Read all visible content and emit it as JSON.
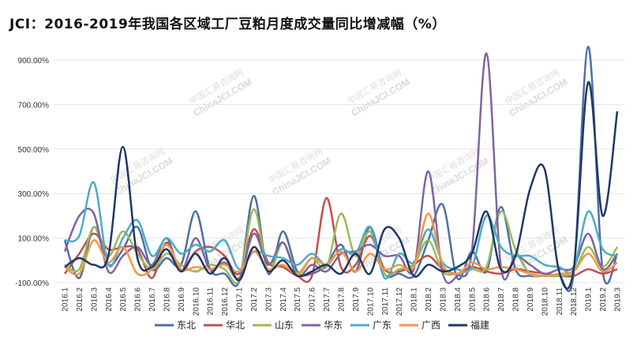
{
  "chart_data": {
    "type": "line",
    "title": "JCI：2016-2019年我国各区域工厂豆粕月度成交量同比增减幅（%）",
    "xlabel": "",
    "ylabel": "",
    "ylim": [
      -100,
      950
    ],
    "yticks": [
      -100,
      100,
      300,
      500,
      700,
      900
    ],
    "ytick_labels": [
      "-100.00%",
      "100.00%",
      "300.00%",
      "500.00%",
      "700.00%",
      "900.00%"
    ],
    "x": [
      "2016.1",
      "2016.2",
      "2016.3",
      "2016.4",
      "2016.5",
      "2016.6",
      "2016.7",
      "2016.8",
      "2016.9",
      "2016.10",
      "2016.11",
      "2016.12",
      "2017.1",
      "2017.2",
      "2017.3",
      "2017.4",
      "2017.5",
      "2017.6",
      "2017.7",
      "2017.8",
      "2017.9",
      "2017.10",
      "2017.11",
      "2017.12",
      "2018.1",
      "2018.2",
      "2018.3",
      "2018.4",
      "2018.5",
      "2018.6",
      "2018.7",
      "2018.8",
      "2018.9",
      "2018.10",
      "2018.11",
      "2018.12",
      "2019.1",
      "2019.2",
      "2019.3"
    ],
    "legend_position": "bottom",
    "series": [
      {
        "name": "东北",
        "color": "#4e6fa6",
        "values": [
          90,
          -80,
          150,
          -20,
          50,
          150,
          -40,
          10,
          -20,
          220,
          -40,
          -60,
          -95,
          290,
          -60,
          130,
          -50,
          -60,
          -20,
          70,
          -50,
          150,
          -60,
          -60,
          -70,
          90,
          250,
          -80,
          40,
          -50,
          240,
          -40,
          -70,
          -70,
          -70,
          -60,
          960,
          -50,
          30
        ]
      },
      {
        "name": "华北",
        "color": "#c0504d",
        "values": [
          -60,
          30,
          120,
          50,
          60,
          50,
          -80,
          80,
          -50,
          40,
          60,
          20,
          -60,
          140,
          -10,
          -30,
          -70,
          -70,
          280,
          -30,
          -20,
          110,
          -40,
          -50,
          -20,
          20,
          -40,
          -60,
          -30,
          -50,
          -60,
          -40,
          -50,
          -60,
          -70,
          -70,
          -40,
          -60,
          -40
        ]
      },
      {
        "name": "山东",
        "color": "#9bbb59",
        "values": [
          -20,
          -40,
          150,
          20,
          130,
          30,
          -40,
          30,
          -20,
          -50,
          -20,
          -40,
          -90,
          230,
          -50,
          80,
          -60,
          10,
          -30,
          210,
          20,
          130,
          -60,
          -40,
          -20,
          90,
          -50,
          -60,
          -40,
          -30,
          220,
          50,
          -60,
          -70,
          -70,
          -50,
          60,
          -30,
          60
        ]
      },
      {
        "name": "华东",
        "color": "#8064a2",
        "values": [
          40,
          200,
          210,
          -50,
          20,
          60,
          -20,
          100,
          -50,
          100,
          -40,
          -10,
          -80,
          120,
          -20,
          80,
          -70,
          -20,
          -50,
          30,
          40,
          70,
          20,
          20,
          -40,
          400,
          -60,
          -70,
          40,
          930,
          -30,
          20,
          -20,
          -60,
          -40,
          -30,
          120,
          -40,
          30
        ]
      },
      {
        "name": "广东",
        "color": "#4bacc6",
        "values": [
          90,
          110,
          350,
          -20,
          100,
          180,
          20,
          100,
          30,
          70,
          40,
          90,
          -40,
          40,
          20,
          10,
          -20,
          30,
          -20,
          50,
          30,
          150,
          -80,
          30,
          -10,
          140,
          -10,
          -40,
          -30,
          200,
          60,
          20,
          20,
          -20,
          -30,
          -40,
          220,
          50,
          20
        ]
      },
      {
        "name": "广西",
        "color": "#f79646",
        "values": [
          -30,
          -60,
          90,
          -10,
          60,
          -60,
          -40,
          70,
          -40,
          -30,
          -40,
          -20,
          -50,
          40,
          -40,
          -20,
          -60,
          10,
          -20,
          40,
          -50,
          30,
          -40,
          -20,
          -30,
          210,
          -20,
          -60,
          -10,
          -40,
          -30,
          -40,
          -60,
          -70,
          -60,
          -50,
          30,
          -50,
          -10
        ]
      },
      {
        "name": "福建",
        "color": "#1f3864",
        "values": [
          -30,
          10,
          -20,
          20,
          510,
          10,
          -30,
          50,
          -50,
          30,
          -60,
          10,
          -90,
          60,
          -50,
          0,
          -70,
          -50,
          -20,
          -60,
          30,
          -60,
          140,
          100,
          -70,
          -20,
          -50,
          -30,
          30,
          220,
          -40,
          20,
          320,
          410,
          -50,
          -40,
          800,
          200,
          670
        ]
      }
    ]
  },
  "watermark": {
    "cn": "中国汇易咨询网",
    "en": "ChinaJCI.COM"
  }
}
